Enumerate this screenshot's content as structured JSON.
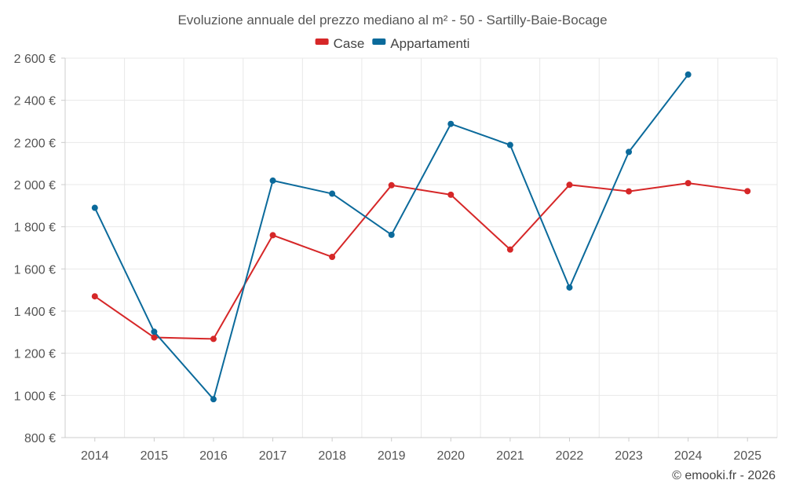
{
  "chart_data": {
    "type": "line",
    "title": "Evoluzione annuale del prezzo mediano al m² - 50 - Sartilly-Baie-Bocage",
    "categories": [
      "2014",
      "2015",
      "2016",
      "2017",
      "2018",
      "2019",
      "2020",
      "2021",
      "2022",
      "2023",
      "2024",
      "2025"
    ],
    "series": [
      {
        "name": "Case",
        "color": "#d62728",
        "values": [
          1470,
          1275,
          1268,
          1760,
          1657,
          1997,
          1952,
          1692,
          1999,
          1968,
          2007,
          1969
        ]
      },
      {
        "name": "Appartamenti",
        "color": "#0b6a9b",
        "values": [
          1890,
          1302,
          982,
          2019,
          1957,
          1762,
          2288,
          2188,
          1512,
          2155,
          2522,
          null
        ]
      }
    ],
    "ylim": [
      800,
      2600
    ],
    "yticks": [
      800,
      1000,
      1200,
      1400,
      1600,
      1800,
      2000,
      2200,
      2400,
      2600
    ],
    "ytick_labels": [
      "800 €",
      "1 000 €",
      "1 200 €",
      "1 400 €",
      "1 600 €",
      "1 800 €",
      "2 000 €",
      "2 200 €",
      "2 400 €",
      "2 600 €"
    ],
    "xlabel": "",
    "ylabel": "",
    "grid": true,
    "legend_position": "top-center"
  },
  "credit": "© emooki.fr - 2026"
}
